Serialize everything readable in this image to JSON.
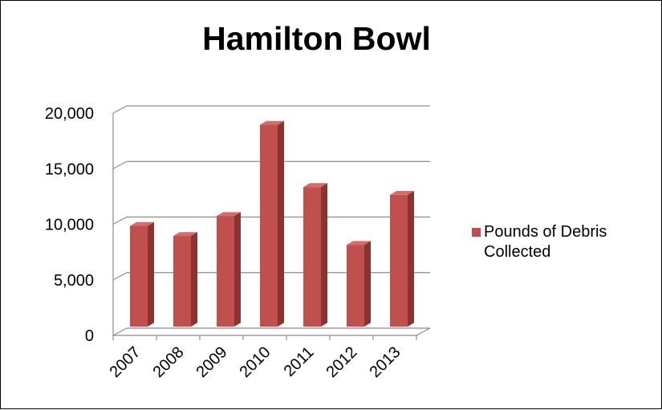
{
  "chart_data": {
    "type": "bar",
    "title": "Hamilton Bowl",
    "categories": [
      "2007",
      "2008",
      "2009",
      "2010",
      "2011",
      "2012",
      "2013"
    ],
    "series": [
      {
        "name": "Pounds of Debris Collected",
        "values": [
          9200,
          8300,
          10100,
          18300,
          12700,
          7500,
          12000
        ]
      }
    ],
    "y_ticks": [
      "0",
      "5,000",
      "10,000",
      "15,000",
      "20,000"
    ],
    "ylim": [
      0,
      20000
    ],
    "grid": true,
    "legend_position": "right",
    "style": "3d-column",
    "colors": {
      "bar_front": "#c0504d",
      "bar_side": "#8c3331",
      "bar_top": "#d46c69",
      "grid": "#8c8c8c"
    }
  },
  "legend": {
    "line1": "Pounds of Debris",
    "line2": "Collected"
  }
}
